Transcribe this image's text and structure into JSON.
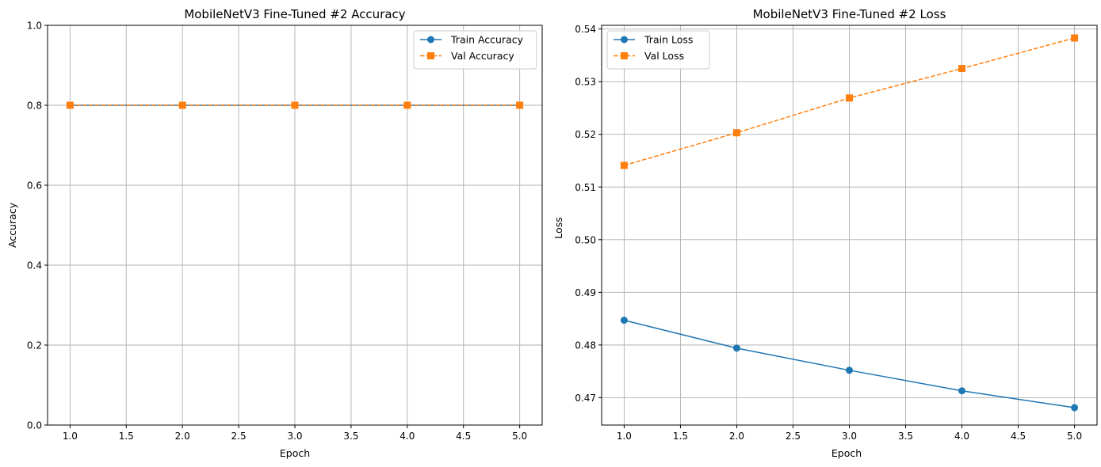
{
  "chart_data": [
    {
      "type": "line",
      "title": "MobileNetV3 Fine-Tuned #2 Accuracy",
      "xlabel": "Epoch",
      "ylabel": "Accuracy",
      "xlim": [
        0.8,
        5.2
      ],
      "ylim": [
        0.0,
        1.0
      ],
      "xticks": [
        "1.0",
        "1.5",
        "2.0",
        "2.5",
        "3.0",
        "3.5",
        "4.0",
        "4.5",
        "5.0"
      ],
      "xtick_values": [
        1.0,
        1.5,
        2.0,
        2.5,
        3.0,
        3.5,
        4.0,
        4.5,
        5.0
      ],
      "yticks": [
        "0.0",
        "0.2",
        "0.4",
        "0.6",
        "0.8",
        "1.0"
      ],
      "ytick_values": [
        0.0,
        0.2,
        0.4,
        0.6,
        0.8,
        1.0
      ],
      "grid": true,
      "legend_position": "top-right",
      "x": [
        1,
        2,
        3,
        4,
        5
      ],
      "series": [
        {
          "name": "Train Accuracy",
          "values": [
            0.8,
            0.8,
            0.8,
            0.8,
            0.8
          ],
          "color": "#1f77b4",
          "marker": "circle",
          "linestyle": "solid"
        },
        {
          "name": "Val Accuracy",
          "values": [
            0.8,
            0.8,
            0.8,
            0.8,
            0.8
          ],
          "color": "#ff7f0e",
          "marker": "square",
          "linestyle": "dashed"
        }
      ]
    },
    {
      "type": "line",
      "title": "MobileNetV3 Fine-Tuned #2 Loss",
      "xlabel": "Epoch",
      "ylabel": "Loss",
      "xlim": [
        0.8,
        5.2
      ],
      "ylim": [
        0.4648,
        0.5407
      ],
      "xticks": [
        "1.0",
        "1.5",
        "2.0",
        "2.5",
        "3.0",
        "3.5",
        "4.0",
        "4.5",
        "5.0"
      ],
      "xtick_values": [
        1.0,
        1.5,
        2.0,
        2.5,
        3.0,
        3.5,
        4.0,
        4.5,
        5.0
      ],
      "yticks": [
        "0.47",
        "0.48",
        "0.49",
        "0.50",
        "0.51",
        "0.52",
        "0.53",
        "0.54"
      ],
      "ytick_values": [
        0.47,
        0.48,
        0.49,
        0.5,
        0.51,
        0.52,
        0.53,
        0.54
      ],
      "grid": true,
      "legend_position": "top-left",
      "x": [
        1,
        2,
        3,
        4,
        5
      ],
      "series": [
        {
          "name": "Train Loss",
          "values": [
            0.4847,
            0.4794,
            0.4752,
            0.4713,
            0.4681
          ],
          "color": "#1f77b4",
          "marker": "circle",
          "linestyle": "solid"
        },
        {
          "name": "Val Loss",
          "values": [
            0.5141,
            0.5203,
            0.5269,
            0.5325,
            0.5383
          ],
          "color": "#ff7f0e",
          "marker": "square",
          "linestyle": "dashed"
        }
      ]
    }
  ]
}
